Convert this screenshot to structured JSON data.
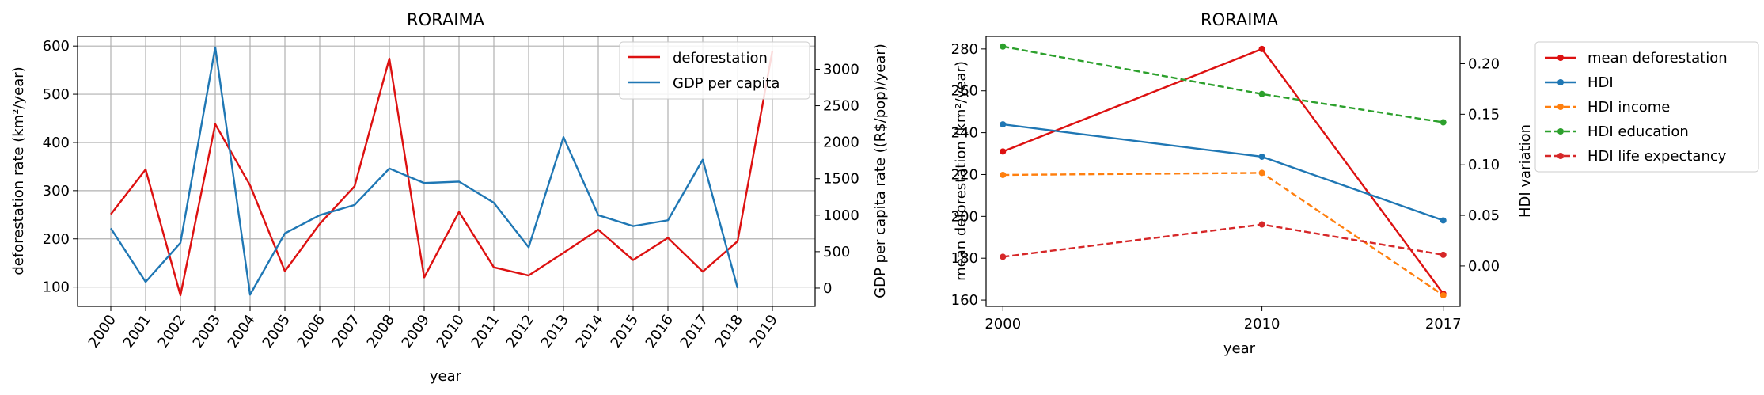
{
  "chart_data": [
    {
      "type": "line",
      "title": "RORAIMA",
      "xlabel": "year",
      "ylabel": "deforestation rate (km²/year)",
      "y2label": "GDP per capita rate ((R$/pop)/year)",
      "grid": true,
      "legend_position": "top-right",
      "x": [
        "2000",
        "2001",
        "2002",
        "2003",
        "2004",
        "2005",
        "2006",
        "2007",
        "2008",
        "2009",
        "2010",
        "2011",
        "2012",
        "2013",
        "2014",
        "2015",
        "2016",
        "2017",
        "2018",
        "2019"
      ],
      "ylim": [
        60,
        620
      ],
      "yticks": [
        100,
        200,
        300,
        400,
        500,
        600
      ],
      "y2lim": [
        -250,
        3450
      ],
      "y2ticks": [
        0,
        500,
        1000,
        1500,
        2000,
        2500,
        3000
      ],
      "series": [
        {
          "name": "deforestation",
          "axis": "left",
          "color": "#dd1111",
          "values": [
            251,
            344,
            83,
            438,
            311,
            133,
            231,
            309,
            574,
            120,
            256,
            141,
            124,
            171,
            219,
            156,
            202,
            132,
            195,
            590
          ]
        },
        {
          "name": "GDP per capita",
          "axis": "right",
          "color": "#1f77b4",
          "values": [
            820,
            85,
            620,
            3300,
            -90,
            750,
            1000,
            1140,
            1640,
            1440,
            1460,
            1170,
            560,
            2070,
            1000,
            850,
            930,
            1760,
            0,
            null
          ]
        }
      ]
    },
    {
      "type": "line",
      "title": "RORAIMA",
      "xlabel": "year",
      "ylabel": "mean deforestation (km²/year)",
      "y2label": "HDI variation",
      "grid": false,
      "legend_position": "outside-right",
      "x": [
        2000,
        2010,
        2017
      ],
      "ylim": [
        157,
        286
      ],
      "yticks": [
        160,
        180,
        200,
        220,
        240,
        260,
        280
      ],
      "y2lim": [
        -0.04,
        0.227
      ],
      "y2ticks": [
        0.0,
        0.05,
        0.1,
        0.15,
        0.2
      ],
      "series": [
        {
          "name": "mean deforestation",
          "axis": "left",
          "color": "#dd1111",
          "dashed": false,
          "values": [
            231,
            280,
            163
          ]
        },
        {
          "name": "HDI",
          "axis": "right",
          "color": "#1f77b4",
          "dashed": false,
          "values": [
            0.14,
            0.108,
            0.045
          ]
        },
        {
          "name": "HDI income",
          "axis": "right",
          "color": "#ff7f0e",
          "dashed": true,
          "values": [
            0.09,
            0.092,
            -0.029
          ]
        },
        {
          "name": "HDI education",
          "axis": "right",
          "color": "#2ca02c",
          "dashed": true,
          "values": [
            0.217,
            0.17,
            0.142
          ]
        },
        {
          "name": "HDI life expectancy",
          "axis": "right",
          "color": "#d62728",
          "dashed": true,
          "values": [
            0.009,
            0.041,
            0.011
          ]
        }
      ]
    }
  ]
}
